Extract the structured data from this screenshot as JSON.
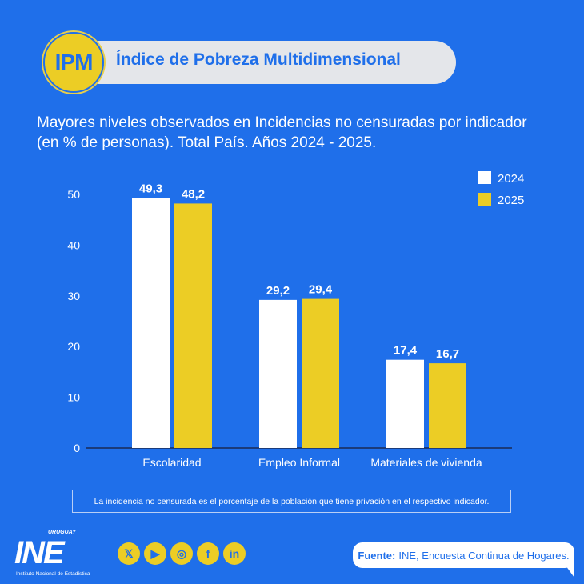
{
  "header": {
    "badge": "IPM",
    "title": "Índice de Pobreza Multidimensional"
  },
  "chart_data": {
    "type": "bar",
    "title": "Mayores niveles observados en Incidencias no censuradas por indicador (en % de personas). Total País. Años 2024 - 2025.",
    "categories": [
      "Escolaridad",
      "Empleo Informal",
      "Materiales de vivienda"
    ],
    "series": [
      {
        "name": "2024",
        "color": "#ffffff",
        "values": [
          49.3,
          29.2,
          17.4
        ],
        "labels": [
          "49,3",
          "29,2",
          "17,4"
        ]
      },
      {
        "name": "2025",
        "color": "#eccd25",
        "values": [
          48.2,
          29.4,
          16.7
        ],
        "labels": [
          "48,2",
          "29,4",
          "16,7"
        ]
      }
    ],
    "yticks": [
      "0",
      "10",
      "20",
      "30",
      "40",
      "50"
    ],
    "ylim": [
      0,
      50
    ],
    "legend": "top-right",
    "grid": false
  },
  "note": "La incidencia no censurada es el porcentaje de la población que tiene privación en el respectivo indicador.",
  "footer": {
    "logo": {
      "main": "INE",
      "country": "URUGUAY",
      "sub": "Instituto Nacional de Estadística"
    },
    "socials": [
      {
        "icon": "x-icon",
        "glyph": "𝕏"
      },
      {
        "icon": "youtube-icon",
        "glyph": "▶"
      },
      {
        "icon": "instagram-icon",
        "glyph": "◎"
      },
      {
        "icon": "facebook-icon",
        "glyph": "f"
      },
      {
        "icon": "linkedin-icon",
        "glyph": "in"
      }
    ],
    "source_label": "Fuente:",
    "source_text": "INE, Encuesta Continua de Hogares."
  }
}
